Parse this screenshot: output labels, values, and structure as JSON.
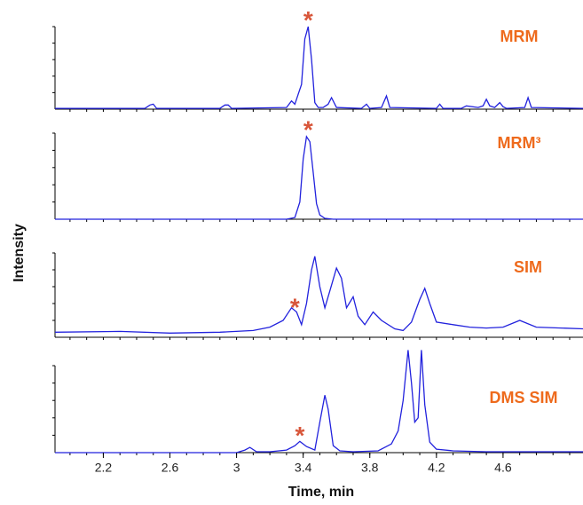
{
  "ylabel": "Intensity",
  "chart_data": [
    {
      "type": "line",
      "label": "MRM",
      "color": "#2222dd",
      "xlim": [
        1.91,
        5.08
      ],
      "ylim": [
        0,
        100
      ],
      "annotation": {
        "text": "*",
        "x": 3.43,
        "y": 112
      },
      "x": [
        1.91,
        2.45,
        2.48,
        2.5,
        2.52,
        2.9,
        2.93,
        2.95,
        2.97,
        3.3,
        3.33,
        3.35,
        3.37,
        3.39,
        3.41,
        3.43,
        3.45,
        3.47,
        3.49,
        3.52,
        3.55,
        3.57,
        3.6,
        3.75,
        3.78,
        3.8,
        3.87,
        3.9,
        3.92,
        4.2,
        4.22,
        4.24,
        4.35,
        4.38,
        4.45,
        4.48,
        4.5,
        4.52,
        4.55,
        4.58,
        4.6,
        4.62,
        4.73,
        4.75,
        4.77,
        5.08
      ],
      "values": [
        1,
        1,
        5,
        6,
        1,
        1,
        5,
        5,
        1,
        2,
        10,
        6,
        18,
        30,
        85,
        100,
        60,
        8,
        2,
        2,
        6,
        14,
        2,
        1,
        6,
        1,
        2,
        16,
        2,
        1,
        6,
        1,
        1,
        4,
        2,
        4,
        12,
        4,
        2,
        8,
        3,
        1,
        2,
        14,
        2,
        1
      ]
    },
    {
      "type": "line",
      "label": "MRM³",
      "color": "#2222dd",
      "xlim": [
        1.91,
        5.08
      ],
      "ylim": [
        0,
        100
      ],
      "annotation": {
        "text": "*",
        "x": 3.43,
        "y": 108
      },
      "x": [
        1.91,
        3.3,
        3.35,
        3.38,
        3.4,
        3.42,
        3.44,
        3.46,
        3.48,
        3.5,
        3.53,
        3.58,
        5.08
      ],
      "values": [
        0,
        0,
        2,
        20,
        70,
        96,
        90,
        55,
        18,
        5,
        1,
        0,
        0
      ]
    },
    {
      "type": "line",
      "label": "SIM",
      "color": "#2222dd",
      "xlim": [
        1.91,
        5.08
      ],
      "ylim": [
        0,
        100
      ],
      "annotation": {
        "text": "*",
        "x": 3.35,
        "y": 40
      },
      "x": [
        1.91,
        2.3,
        2.6,
        2.9,
        3.1,
        3.2,
        3.28,
        3.33,
        3.36,
        3.39,
        3.42,
        3.45,
        3.47,
        3.5,
        3.53,
        3.56,
        3.6,
        3.63,
        3.66,
        3.7,
        3.73,
        3.77,
        3.82,
        3.87,
        3.95,
        4.0,
        4.05,
        4.1,
        4.13,
        4.16,
        4.2,
        4.3,
        4.4,
        4.5,
        4.6,
        4.7,
        4.8,
        5.08
      ],
      "values": [
        6,
        7,
        5,
        6,
        8,
        12,
        20,
        35,
        30,
        15,
        40,
        80,
        96,
        60,
        35,
        55,
        82,
        70,
        35,
        48,
        25,
        15,
        30,
        20,
        10,
        8,
        18,
        45,
        58,
        40,
        18,
        15,
        12,
        11,
        12,
        20,
        12,
        10
      ]
    },
    {
      "type": "line",
      "label": "DMS SIM",
      "color": "#2222dd",
      "xlim": [
        1.91,
        5.08
      ],
      "ylim": [
        0,
        100
      ],
      "annotation": {
        "text": "*",
        "x": 3.38,
        "y": 24
      },
      "xlabel": "Time, min",
      "xticks": [
        2.2,
        2.6,
        3.0,
        3.4,
        3.8,
        4.2,
        4.6
      ],
      "x": [
        1.91,
        3.0,
        3.05,
        3.08,
        3.12,
        3.2,
        3.3,
        3.35,
        3.38,
        3.42,
        3.47,
        3.5,
        3.53,
        3.55,
        3.58,
        3.62,
        3.7,
        3.85,
        3.93,
        3.97,
        4.0,
        4.03,
        4.05,
        4.07,
        4.09,
        4.11,
        4.13,
        4.16,
        4.2,
        4.3,
        4.5,
        5.08
      ],
      "values": [
        0,
        0,
        3,
        6,
        1,
        1,
        3,
        8,
        13,
        7,
        3,
        35,
        66,
        50,
        8,
        2,
        1,
        2,
        10,
        25,
        60,
        118,
        80,
        35,
        40,
        118,
        55,
        12,
        4,
        2,
        1,
        1
      ]
    }
  ]
}
